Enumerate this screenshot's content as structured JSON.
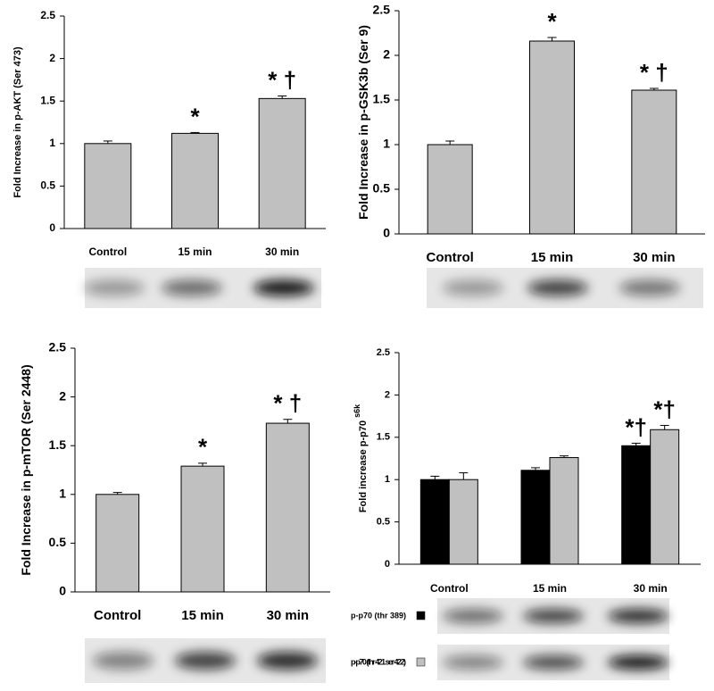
{
  "chart_data": [
    {
      "type": "bar",
      "ylabel": "Fold Increase in p-AKT (Ser 473)",
      "categories": [
        "Control",
        "15 min",
        "30 min"
      ],
      "values": [
        1,
        1.12,
        1.53
      ],
      "errors": [
        0.03,
        0.01,
        0.03
      ],
      "annotations": [
        null,
        "*",
        "* †"
      ],
      "color": "#c0c0c0",
      "ylim": [
        0,
        2.5
      ],
      "yticks": [
        0,
        0.5,
        1,
        1.5,
        2,
        2.5
      ],
      "grid": false
    },
    {
      "type": "bar",
      "ylabel": "Fold Increase in p-GSK3b (Ser 9)",
      "categories": [
        "Control",
        "15 min",
        "30 min"
      ],
      "values": [
        1,
        2.16,
        1.61
      ],
      "errors": [
        0.04,
        0.04,
        0.02
      ],
      "annotations": [
        null,
        "*",
        "* †"
      ],
      "color": "#c0c0c0",
      "ylim": [
        0,
        2.5
      ],
      "yticks": [
        0,
        0.5,
        1,
        1.5,
        2,
        2.5
      ],
      "grid": false
    },
    {
      "type": "bar",
      "ylabel": "Fold Increase in p-mTOR (Ser 2448)",
      "categories": [
        "Control",
        "15 min",
        "30 min"
      ],
      "values": [
        1,
        1.29,
        1.73
      ],
      "errors": [
        0.02,
        0.03,
        0.04
      ],
      "annotations": [
        null,
        "*",
        "* †"
      ],
      "color": "#c0c0c0",
      "ylim": [
        0,
        2.5
      ],
      "yticks": [
        0,
        0.5,
        1,
        1.5,
        2,
        2.5
      ],
      "grid": false
    },
    {
      "type": "grouped-bar",
      "ylabel": "Fold increase p-p70",
      "ylabel_superscript": "s6k",
      "categories": [
        "Control",
        "15 min",
        "30 min"
      ],
      "series": [
        {
          "name": "p-p70 (thr 389)",
          "color": "#000000",
          "values": [
            1,
            1.11,
            1.4
          ],
          "errors": [
            0.04,
            0.03,
            0.03
          ],
          "annotations": [
            null,
            null,
            "*†"
          ]
        },
        {
          "name": "p-p70 (thr 421 ser 422)",
          "color": "#c0c0c0",
          "values": [
            1,
            1.26,
            1.59
          ],
          "errors": [
            0.08,
            0.02,
            0.05
          ],
          "annotations": [
            null,
            null,
            "*†"
          ]
        }
      ],
      "ylim": [
        0,
        2.5
      ],
      "yticks": [
        0,
        0.5,
        1,
        1.5,
        2,
        2.5
      ],
      "grid": false
    }
  ]
}
